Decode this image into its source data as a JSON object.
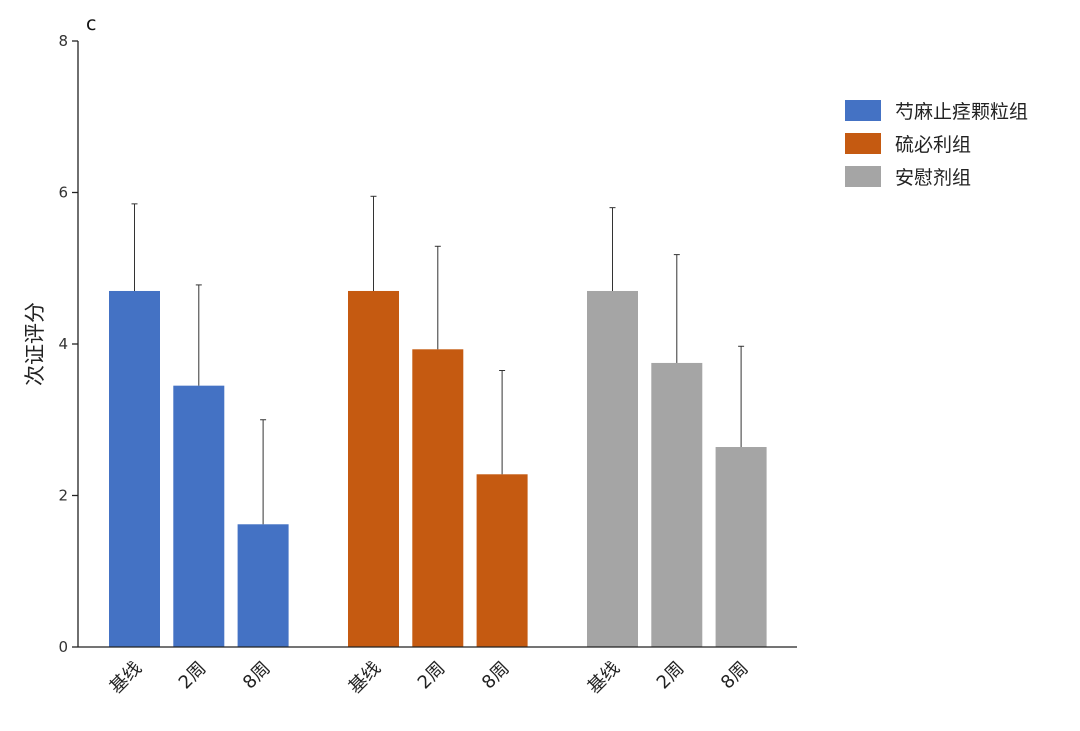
{
  "chart_data": {
    "type": "bar",
    "panel_label": "c",
    "ylabel": "次证评分",
    "xlabel": "",
    "ylim": [
      0,
      8
    ],
    "yticks": [
      0,
      2,
      4,
      6,
      8
    ],
    "error_bars": true,
    "legend_position": "top-right",
    "groups": [
      {
        "name": "芍麻止痉颗粒组",
        "color": "#4472C4",
        "categories": [
          "基线",
          "2周",
          "8周"
        ],
        "values": [
          4.7,
          3.45,
          1.62
        ],
        "errors": [
          1.15,
          1.33,
          1.38
        ]
      },
      {
        "name": "硫必利组",
        "color": "#C55A11",
        "categories": [
          "基线",
          "2周",
          "8周"
        ],
        "values": [
          4.7,
          3.93,
          2.28
        ],
        "errors": [
          1.25,
          1.36,
          1.37
        ]
      },
      {
        "name": "安慰剂组",
        "color": "#A5A5A5",
        "categories": [
          "基线",
          "2周",
          "8周"
        ],
        "values": [
          4.7,
          3.75,
          2.64
        ],
        "errors": [
          1.1,
          1.43,
          1.33
        ]
      }
    ]
  }
}
